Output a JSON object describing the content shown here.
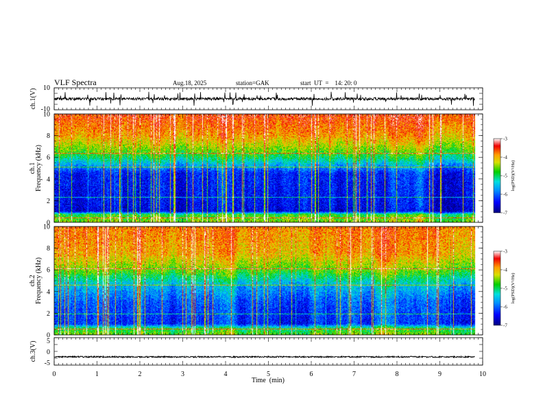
{
  "header": {
    "title": "VLF  Spectra",
    "date": "Aug.18, 2025",
    "station": "station=GAK",
    "start": "start  UT  =    14: 20: 0"
  },
  "chart_data": [
    {
      "type": "line",
      "panel": "ch1-waveform",
      "ylabel": "ch.1(V)",
      "ylim": [
        -10,
        10
      ],
      "yticks": [
        "10",
        "-10"
      ],
      "baseline": 0,
      "noise_amplitude": 1.3
    },
    {
      "type": "heatmap",
      "panel": "ch1-spectrogram",
      "ylabel_top": "ch.1",
      "ylabel": "Frequency  (kHz)",
      "ylim": [
        0,
        10
      ],
      "yticks": [
        "0",
        "2",
        "4",
        "6",
        "8",
        "10"
      ],
      "color_range": [
        -7,
        -3
      ],
      "colorbar_ticks": [
        "-3",
        "-4",
        "-5",
        "-6",
        "-7"
      ],
      "colorbar_label": "log(PSD)(V²/Hz)",
      "spectral_profile": [
        {
          "freq_khz": 0.0,
          "logpsd": -4.4
        },
        {
          "freq_khz": 0.7,
          "logpsd": -4.8
        },
        {
          "freq_khz": 1.0,
          "logpsd": -6.5
        },
        {
          "freq_khz": 2.0,
          "logpsd": -6.4
        },
        {
          "freq_khz": 4.5,
          "logpsd": -6.3
        },
        {
          "freq_khz": 5.5,
          "logpsd": -5.4
        },
        {
          "freq_khz": 6.5,
          "logpsd": -4.6
        },
        {
          "freq_khz": 8.0,
          "logpsd": -3.9
        },
        {
          "freq_khz": 10.0,
          "logpsd": -3.5
        }
      ],
      "lines_khz": [
        0.4,
        2.3,
        5.1,
        6.4
      ]
    },
    {
      "type": "heatmap",
      "panel": "ch2-spectrogram",
      "ylabel_top": "ch.2",
      "ylabel": "Frequency  (kHz)",
      "ylim": [
        0,
        10
      ],
      "yticks": [
        "0",
        "2",
        "4",
        "6",
        "8",
        "10"
      ],
      "color_range": [
        -7,
        -3
      ],
      "colorbar_ticks": [
        "-3",
        "-4",
        "-5",
        "-6",
        "-7"
      ],
      "colorbar_label": "log(PSD)(V²/Hz)",
      "spectral_profile": [
        {
          "freq_khz": 0.0,
          "logpsd": -4.6
        },
        {
          "freq_khz": 0.6,
          "logpsd": -5.0
        },
        {
          "freq_khz": 1.0,
          "logpsd": -6.3
        },
        {
          "freq_khz": 3.0,
          "logpsd": -6.1
        },
        {
          "freq_khz": 4.5,
          "logpsd": -5.6
        },
        {
          "freq_khz": 6.0,
          "logpsd": -4.6
        },
        {
          "freq_khz": 7.5,
          "logpsd": -4.0
        },
        {
          "freq_khz": 10.0,
          "logpsd": -3.8
        }
      ],
      "lines_khz": [
        0.5,
        1.9,
        4.6,
        6.1
      ]
    },
    {
      "type": "line",
      "panel": "ch3-waveform",
      "ylabel": "ch.3(V)",
      "ylim": [
        -5,
        5
      ],
      "yticks": [
        "5",
        "0",
        "-5"
      ],
      "baseline": -2,
      "noise_amplitude": 0.25
    }
  ],
  "xaxis": {
    "label": "Time  (min)",
    "range": [
      0,
      10
    ],
    "ticks": [
      "0",
      "1",
      "2",
      "3",
      "4",
      "5",
      "6",
      "7",
      "8",
      "9",
      "10"
    ],
    "data_end": 9.82
  }
}
